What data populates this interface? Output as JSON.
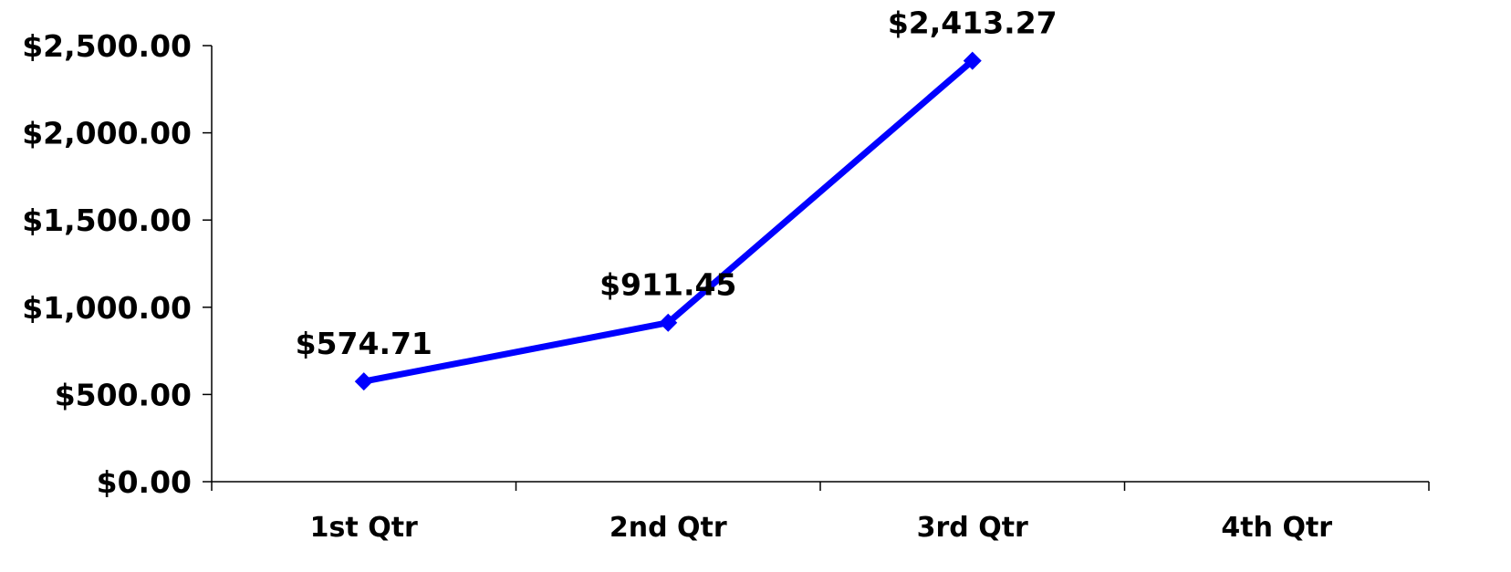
{
  "chart_data": {
    "type": "line",
    "categories": [
      "1st Qtr",
      "2nd Qtr",
      "3rd Qtr",
      "4th Qtr"
    ],
    "series": [
      {
        "values": [
          574.71,
          911.45,
          2413.27,
          null
        ],
        "data_labels": [
          "$574.71",
          "$911.45",
          "$2,413.27",
          null
        ],
        "color": "#0000FF",
        "marker": "diamond"
      }
    ],
    "y_ticks": [
      {
        "value": 0,
        "label": "$0.00"
      },
      {
        "value": 500,
        "label": "$500.00"
      },
      {
        "value": 1000,
        "label": "$1,000.00"
      },
      {
        "value": 1500,
        "label": "$1,500.00"
      },
      {
        "value": 2000,
        "label": "$2,000.00"
      },
      {
        "value": 2500,
        "label": "$2,500.00"
      }
    ],
    "ylim": [
      0,
      2500
    ],
    "grid": false,
    "legend": "none",
    "title": "",
    "xlabel": "",
    "ylabel": ""
  }
}
